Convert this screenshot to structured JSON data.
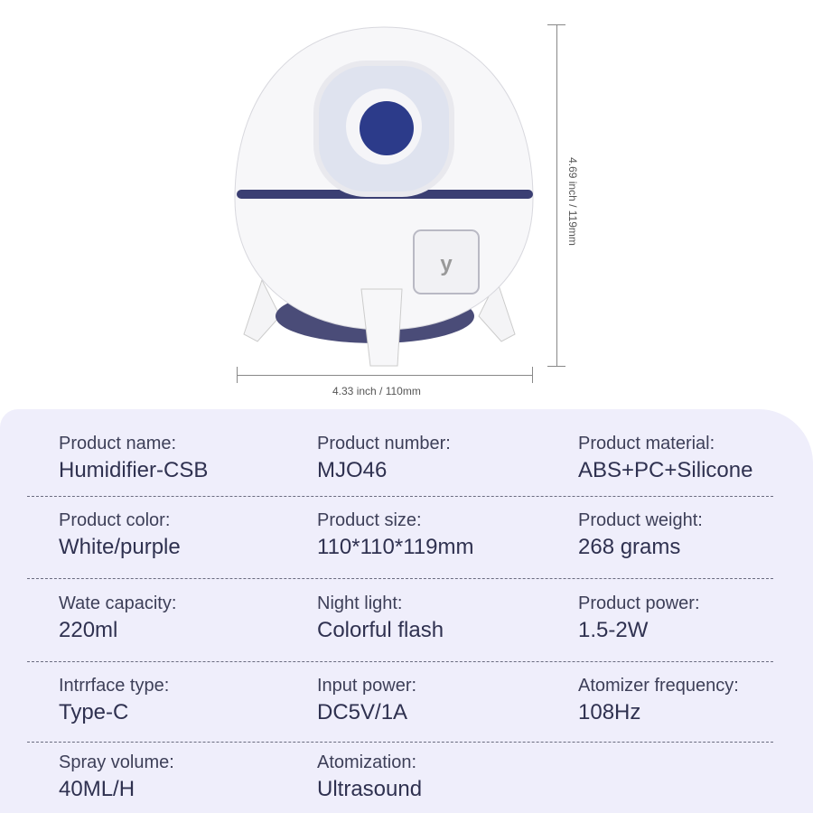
{
  "dimensions": {
    "width": "4.33 inch / 110mm",
    "height": "4.69 inch / 119mm"
  },
  "colors": {
    "panel": "#efeefb",
    "text": "#3a3c55",
    "accent": "#3b3f73"
  },
  "specs": [
    {
      "label": "Product name:",
      "value": "Humidifier-CSB"
    },
    {
      "label": "Product number:",
      "value": "MJO46"
    },
    {
      "label": "Product material:",
      "value": "ABS+PC+Silicone"
    },
    {
      "label": "Product color:",
      "value": "White/purple"
    },
    {
      "label": "Product size:",
      "value": "110*110*119mm"
    },
    {
      "label": "Product weight:",
      "value": "268 grams"
    },
    {
      "label": "Wate capacity:",
      "value": "220ml"
    },
    {
      "label": "Night light:",
      "value": "Colorful flash"
    },
    {
      "label": "Product power:",
      "value": "1.5-2W"
    },
    {
      "label": "Intrrface type:",
      "value": "Type-C"
    },
    {
      "label": "Input power:",
      "value": "DC5V/1A"
    },
    {
      "label": "Atomizer frequency:",
      "value": "108Hz"
    },
    {
      "label": "Spray volume:",
      "value": "40ML/H"
    },
    {
      "label": "Atomization:",
      "value": "Ultrasound"
    }
  ]
}
